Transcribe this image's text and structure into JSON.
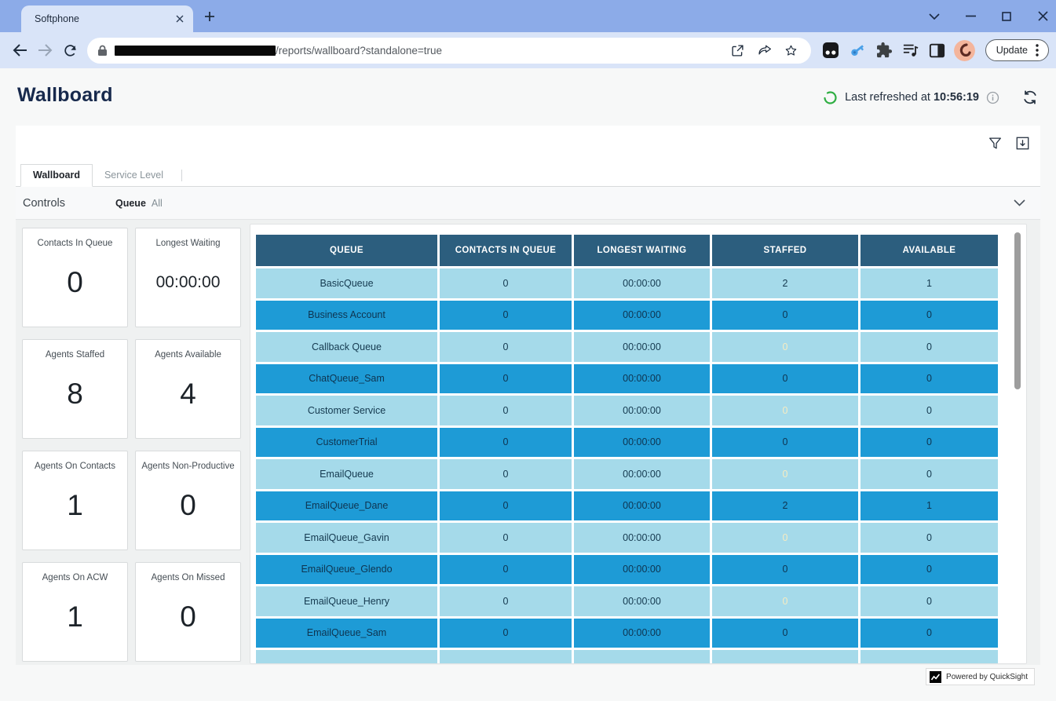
{
  "browser": {
    "tab_title": "Softphone",
    "url_visible_path": "/reports/wallboard?standalone=true",
    "update_button": "Update"
  },
  "header": {
    "title": "Wallboard",
    "last_refreshed_label": "Last refreshed at",
    "last_refreshed_time": "10:56:19"
  },
  "dashboard": {
    "tabs": [
      {
        "label": "Wallboard",
        "active": true
      },
      {
        "label": "Service Level",
        "active": false
      }
    ],
    "controls_label": "Controls",
    "queue_filter": {
      "label": "Queue",
      "value": "All"
    },
    "kpis": [
      {
        "label": "Contacts In Queue",
        "value": "0"
      },
      {
        "label": "Longest Waiting",
        "value": "00:00:00"
      },
      {
        "label": "Agents Staffed",
        "value": "8"
      },
      {
        "label": "Agents Available",
        "value": "4"
      },
      {
        "label": "Agents On Contacts",
        "value": "1"
      },
      {
        "label": "Agents Non-Productive",
        "value": "0"
      },
      {
        "label": "Agents On ACW",
        "value": "1"
      },
      {
        "label": "Agents On Missed",
        "value": "0"
      }
    ],
    "table": {
      "columns": [
        "QUEUE",
        "CONTACTS IN QUEUE",
        "LONGEST WAITING",
        "STAFFED",
        "AVAILABLE"
      ],
      "rows": [
        {
          "queue": "BasicQueue",
          "contacts_in_queue": "0",
          "longest_waiting": "00:00:00",
          "staffed": "2",
          "available": "1",
          "staffed_alert": false
        },
        {
          "queue": "Business Account",
          "contacts_in_queue": "0",
          "longest_waiting": "00:00:00",
          "staffed": "0",
          "available": "0",
          "staffed_alert": true
        },
        {
          "queue": "Callback Queue",
          "contacts_in_queue": "0",
          "longest_waiting": "00:00:00",
          "staffed": "0",
          "available": "0",
          "staffed_alert": true
        },
        {
          "queue": "ChatQueue_Sam",
          "contacts_in_queue": "0",
          "longest_waiting": "00:00:00",
          "staffed": "0",
          "available": "0",
          "staffed_alert": true
        },
        {
          "queue": "Customer Service",
          "contacts_in_queue": "0",
          "longest_waiting": "00:00:00",
          "staffed": "0",
          "available": "0",
          "staffed_alert": true
        },
        {
          "queue": "CustomerTrial",
          "contacts_in_queue": "0",
          "longest_waiting": "00:00:00",
          "staffed": "0",
          "available": "0",
          "staffed_alert": true
        },
        {
          "queue": "EmailQueue",
          "contacts_in_queue": "0",
          "longest_waiting": "00:00:00",
          "staffed": "0",
          "available": "0",
          "staffed_alert": true
        },
        {
          "queue": "EmailQueue_Dane",
          "contacts_in_queue": "0",
          "longest_waiting": "00:00:00",
          "staffed": "2",
          "available": "1",
          "staffed_alert": false
        },
        {
          "queue": "EmailQueue_Gavin",
          "contacts_in_queue": "0",
          "longest_waiting": "00:00:00",
          "staffed": "0",
          "available": "0",
          "staffed_alert": true
        },
        {
          "queue": "EmailQueue_Glendo",
          "contacts_in_queue": "0",
          "longest_waiting": "00:00:00",
          "staffed": "0",
          "available": "0",
          "staffed_alert": true
        },
        {
          "queue": "EmailQueue_Henry",
          "contacts_in_queue": "0",
          "longest_waiting": "00:00:00",
          "staffed": "0",
          "available": "0",
          "staffed_alert": true
        },
        {
          "queue": "EmailQueue_Sam",
          "contacts_in_queue": "0",
          "longest_waiting": "00:00:00",
          "staffed": "0",
          "available": "0",
          "staffed_alert": true
        },
        {
          "queue": "",
          "contacts_in_queue": "",
          "longest_waiting": "",
          "staffed": "",
          "available": "",
          "staffed_alert": true,
          "clipped": true
        }
      ]
    }
  },
  "footer": {
    "powered_by": "Powered by QuickSight"
  },
  "icons": {
    "browser": [
      "back-icon",
      "forward-icon",
      "reload-icon",
      "lock-icon",
      "open-in-new-icon",
      "share-icon",
      "bookmark-star-icon",
      "dark-extension-icon",
      "blue-key-extension-icon",
      "extensions-puzzle-icon",
      "media-playlist-icon",
      "side-panel-icon",
      "profile-avatar",
      "kebab-menu-icon"
    ],
    "page": [
      "refresh-progress-icon",
      "info-icon",
      "refresh-icon",
      "filter-funnel-icon",
      "export-download-icon",
      "chevron-down-icon",
      "quicksight-logo-icon"
    ]
  },
  "colors": {
    "browser_frame": "#8cabe8",
    "table_header": "#2c5e7e",
    "row_light": "#a5daea",
    "row_medium": "#1e9bd6",
    "alert_cell": "#dc3c0c",
    "alert_text": "#f6ecc2",
    "title_navy": "#17294c",
    "refresh_green": "#2fae43"
  }
}
